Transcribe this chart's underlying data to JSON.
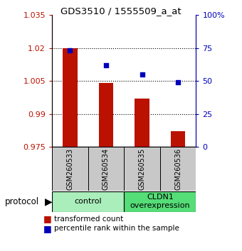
{
  "title": "GDS3510 / 1555509_a_at",
  "samples": [
    "GSM260533",
    "GSM260534",
    "GSM260535",
    "GSM260536"
  ],
  "bar_values": [
    1.02,
    1.004,
    0.997,
    0.982
  ],
  "bar_bottom": 0.975,
  "dot_values": [
    73,
    62,
    55,
    49
  ],
  "ylim_left": [
    0.975,
    1.035
  ],
  "ylim_right": [
    0,
    100
  ],
  "yticks_left": [
    0.975,
    0.99,
    1.005,
    1.02,
    1.035
  ],
  "yticks_right": [
    0,
    25,
    50,
    75,
    100
  ],
  "ytick_labels_left": [
    "0.975",
    "0.99",
    "1.005",
    "1.02",
    "1.035"
  ],
  "ytick_labels_right": [
    "0",
    "25",
    "50",
    "75",
    "100%"
  ],
  "bar_color": "#bb1100",
  "dot_color": "#0000bb",
  "bg_plot": "#ffffff",
  "group_labels": [
    "control",
    "CLDN1\noverexpression"
  ],
  "group_ranges": [
    [
      0,
      1
    ],
    [
      2,
      3
    ]
  ],
  "legend_bar_label": "transformed count",
  "legend_dot_label": "percentile rank within the sample",
  "tick_area_color": "#c8c8c8",
  "group_area_color_light": "#aaeebb",
  "group_area_color_dark": "#55dd77",
  "protocol_label": "protocol"
}
